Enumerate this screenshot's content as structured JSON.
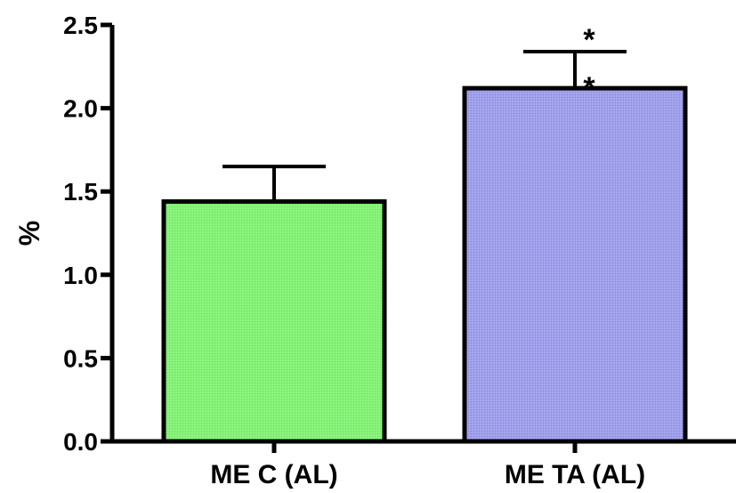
{
  "chart_data": {
    "type": "bar",
    "title": "",
    "xlabel": "",
    "ylabel": "%",
    "ylim": [
      0,
      2.5
    ],
    "yticks": [
      "0.0",
      "0.5",
      "1.0",
      "1.5",
      "2.0",
      "2.5"
    ],
    "categories": [
      "ME C (AL)",
      "ME TA (AL)"
    ],
    "values": [
      1.44,
      2.12
    ],
    "error_upper": [
      0.21,
      0.22
    ],
    "bar_colors": [
      "#88f47a",
      "#9c9be8"
    ],
    "annotations": [
      {
        "category_index": 1,
        "text": "*",
        "position": "above-error-bar"
      },
      {
        "category_index": 1,
        "text": "*",
        "position": "below-error-cap"
      }
    ],
    "grid": false,
    "legend": "none"
  }
}
